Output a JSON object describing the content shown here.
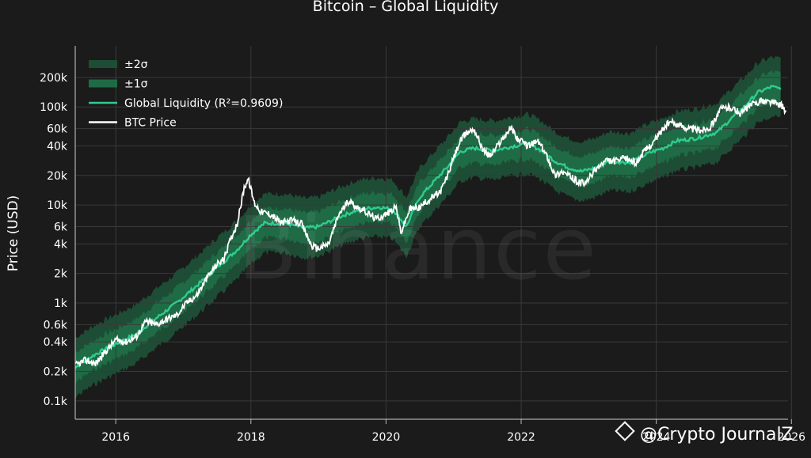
{
  "chart_data": {
    "type": "line",
    "title": "Bitcoin – Global Liquidity",
    "ylabel": "Price (USD)",
    "xlabel": "",
    "y_scale": "log",
    "ylim": [
      65,
      420000
    ],
    "xlim": [
      2015.4,
      2025.95
    ],
    "x_ticks": [
      {
        "value": 2016,
        "label": "2016"
      },
      {
        "value": 2018,
        "label": "2018"
      },
      {
        "value": 2020,
        "label": "2020"
      },
      {
        "value": 2022,
        "label": "2022"
      },
      {
        "value": 2024,
        "label": "2024"
      },
      {
        "value": 2026,
        "label": "2026"
      }
    ],
    "y_ticks": [
      {
        "value": 100,
        "label": "0.1k"
      },
      {
        "value": 200,
        "label": "0.2k"
      },
      {
        "value": 400,
        "label": "0.4k"
      },
      {
        "value": 600,
        "label": "0.6k"
      },
      {
        "value": 1000,
        "label": "1k"
      },
      {
        "value": 2000,
        "label": "2k"
      },
      {
        "value": 4000,
        "label": "4k"
      },
      {
        "value": 6000,
        "label": "6k"
      },
      {
        "value": 10000,
        "label": "10k"
      },
      {
        "value": 20000,
        "label": "20k"
      },
      {
        "value": 40000,
        "label": "40k"
      },
      {
        "value": 60000,
        "label": "60k"
      },
      {
        "value": 100000,
        "label": "100k"
      },
      {
        "value": 200000,
        "label": "200k"
      }
    ],
    "grid": true,
    "legend_position": "top-left",
    "series": [
      {
        "name": "Global Liquidity (R²=0.9609)",
        "color": "#2ecc8f",
        "x": [
          2015.4,
          2015.7,
          2016.0,
          2016.3,
          2016.6,
          2016.9,
          2017.2,
          2017.5,
          2017.8,
          2018.0,
          2018.2,
          2018.5,
          2018.8,
          2019.0,
          2019.3,
          2019.6,
          2019.9,
          2020.1,
          2020.3,
          2020.5,
          2020.7,
          2020.9,
          2021.1,
          2021.3,
          2021.6,
          2021.9,
          2022.1,
          2022.3,
          2022.5,
          2022.7,
          2022.9,
          2023.1,
          2023.3,
          2023.6,
          2023.9,
          2024.1,
          2024.3,
          2024.6,
          2024.9,
          2025.1,
          2025.3,
          2025.5,
          2025.7,
          2025.85
        ],
        "y": [
          220,
          300,
          380,
          480,
          700,
          1000,
          1500,
          2300,
          3500,
          5000,
          6500,
          6500,
          5800,
          6000,
          7500,
          9000,
          9500,
          9000,
          6000,
          12000,
          17000,
          24000,
          35000,
          38000,
          36000,
          40000,
          42000,
          36000,
          28000,
          24000,
          22000,
          24000,
          28000,
          27000,
          34000,
          38000,
          45000,
          48000,
          55000,
          75000,
          100000,
          140000,
          160000,
          155000
        ]
      },
      {
        "name": "BTC Price",
        "color": "#ffffff",
        "x": [
          2015.4,
          2015.55,
          2015.7,
          2015.85,
          2016.0,
          2016.15,
          2016.3,
          2016.45,
          2016.6,
          2016.75,
          2016.9,
          2017.05,
          2017.2,
          2017.35,
          2017.5,
          2017.6,
          2017.7,
          2017.8,
          2017.9,
          2017.96,
          2018.05,
          2018.15,
          2018.3,
          2018.45,
          2018.6,
          2018.75,
          2018.9,
          2019.0,
          2019.15,
          2019.3,
          2019.45,
          2019.55,
          2019.7,
          2019.85,
          2020.0,
          2020.15,
          2020.22,
          2020.35,
          2020.5,
          2020.65,
          2020.8,
          2020.9,
          2021.0,
          2021.1,
          2021.2,
          2021.3,
          2021.45,
          2021.55,
          2021.7,
          2021.85,
          2021.95,
          2022.1,
          2022.25,
          2022.4,
          2022.5,
          2022.6,
          2022.7,
          2022.85,
          2022.95,
          2023.1,
          2023.25,
          2023.4,
          2023.55,
          2023.7,
          2023.85,
          2023.95,
          2024.1,
          2024.2,
          2024.35,
          2024.5,
          2024.65,
          2024.8,
          2024.95,
          2025.1,
          2025.25,
          2025.4,
          2025.55,
          2025.7,
          2025.85,
          2025.92
        ],
        "y": [
          230,
          260,
          240,
          320,
          420,
          400,
          450,
          650,
          600,
          680,
          750,
          1000,
          1200,
          1800,
          2500,
          2800,
          4500,
          6500,
          15000,
          18500,
          10500,
          8500,
          8000,
          6500,
          7000,
          6400,
          3800,
          3600,
          4000,
          8000,
          11000,
          9800,
          8500,
          7200,
          8000,
          9500,
          5200,
          9000,
          9500,
          11500,
          13500,
          19000,
          30000,
          45000,
          55000,
          60000,
          35000,
          32000,
          45000,
          62000,
          47000,
          40000,
          45000,
          30000,
          20000,
          22000,
          20000,
          17000,
          16500,
          23000,
          28000,
          28000,
          30000,
          27000,
          37000,
          43000,
          60000,
          70000,
          65000,
          60000,
          58000,
          62000,
          95000,
          100000,
          85000,
          105000,
          115000,
          112000,
          105000,
          87000
        ]
      }
    ],
    "bands": [
      {
        "name": "±2σ",
        "color": "#1e4d35",
        "multiplier": 2.0
      },
      {
        "name": "±1σ",
        "color": "#1f6b45",
        "multiplier": 1.42
      }
    ],
    "watermark": "Binance",
    "credit": "@Crypto JournalZ"
  }
}
